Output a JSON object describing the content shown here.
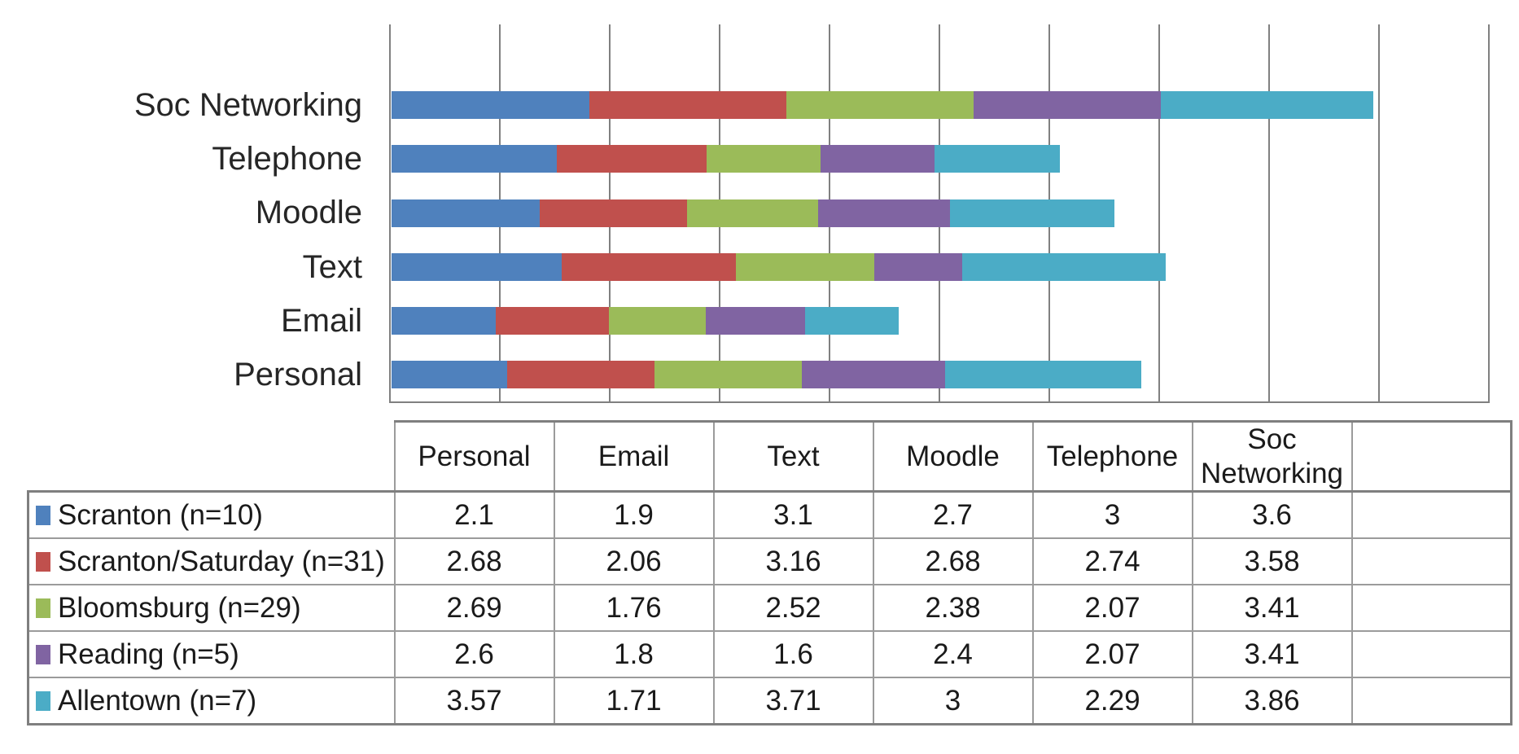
{
  "chart_data": {
    "type": "bar",
    "orientation": "horizontal",
    "stacked": true,
    "title": "",
    "xlabel": "",
    "ylabel": "",
    "grid": true,
    "xlim": [
      0,
      20
    ],
    "gridline_interval": 2,
    "tick_labels_visible": false,
    "legend_position": "table-rows",
    "categories": [
      "Personal",
      "Email",
      "Text",
      "Moodle",
      "Telephone",
      "Soc Networking"
    ],
    "display_order_top_to_bottom": [
      "",
      "Soc Networking",
      "Telephone",
      "Moodle",
      "Text",
      "Email",
      "Personal"
    ],
    "series": [
      {
        "name": "Scranton (n=10)",
        "color": "#4F81BD",
        "values": [
          2.1,
          1.9,
          3.1,
          2.7,
          3,
          3.6
        ]
      },
      {
        "name": "Scranton/Saturday (n=31)",
        "color": "#C0504D",
        "values": [
          2.68,
          2.06,
          3.16,
          2.68,
          2.74,
          3.58
        ]
      },
      {
        "name": "Bloomsburg (n=29)",
        "color": "#9BBB59",
        "values": [
          2.69,
          1.76,
          2.52,
          2.38,
          2.07,
          3.41
        ]
      },
      {
        "name": "Reading (n=5)",
        "color": "#8064A2",
        "values": [
          2.6,
          1.8,
          1.6,
          2.4,
          2.07,
          3.41
        ]
      },
      {
        "name": "Allentown (n=7)",
        "color": "#4BACC6",
        "values": [
          3.57,
          1.71,
          3.71,
          3,
          2.29,
          3.86
        ]
      }
    ]
  },
  "table": {
    "columns": [
      "Personal",
      "Email",
      "Text",
      "Moodle",
      "Telephone",
      "Soc Networking",
      ""
    ],
    "rows": [
      {
        "label": "Scranton (n=10)",
        "swatch_color": "#4F81BD",
        "values": [
          "2.1",
          "1.9",
          "3.1",
          "2.7",
          "3",
          "3.6",
          ""
        ]
      },
      {
        "label": "Scranton/Saturday (n=31)",
        "swatch_color": "#C0504D",
        "values": [
          "2.68",
          "2.06",
          "3.16",
          "2.68",
          "2.74",
          "3.58",
          ""
        ]
      },
      {
        "label": "Bloomsburg (n=29)",
        "swatch_color": "#9BBB59",
        "values": [
          "2.69",
          "1.76",
          "2.52",
          "2.38",
          "2.07",
          "3.41",
          ""
        ]
      },
      {
        "label": "Reading (n=5)",
        "swatch_color": "#8064A2",
        "values": [
          "2.6",
          "1.8",
          "1.6",
          "2.4",
          "2.07",
          "3.41",
          ""
        ]
      },
      {
        "label": "Allentown (n=7)",
        "swatch_color": "#4BACC6",
        "values": [
          "3.57",
          "1.71",
          "3.71",
          "3",
          "2.29",
          "3.86",
          ""
        ]
      }
    ]
  },
  "colors": {
    "series_blue": "#4F81BD",
    "series_red": "#C0504D",
    "series_green": "#9BBB59",
    "series_purple": "#8064A2",
    "series_teal": "#4BACC6",
    "gridline": "#808080",
    "table_border": "#9b9b9b",
    "table_border_thick": "#7f7f7f",
    "text": "#1a1a1a"
  }
}
